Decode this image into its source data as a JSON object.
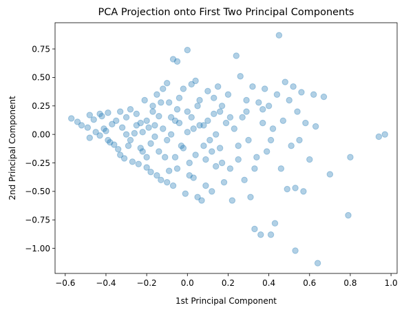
{
  "chart_data": {
    "type": "scatter",
    "title": "PCA Projection onto First Two Principal Components",
    "xlabel": "1st Principal Component",
    "ylabel": "2nd Principal Component",
    "xlim": [
      -0.65,
      1.03
    ],
    "ylim": [
      -1.22,
      0.98
    ],
    "xticks": [
      -0.6,
      -0.4,
      -0.2,
      0.0,
      0.2,
      0.4,
      0.6,
      0.8,
      1.0
    ],
    "xtick_labels": [
      "−0.6",
      "−0.4",
      "−0.2",
      "0.0",
      "0.2",
      "0.4",
      "0.6",
      "0.8",
      "1.0"
    ],
    "yticks": [
      0.75,
      0.5,
      0.25,
      0.0,
      -0.25,
      -0.5,
      -0.75,
      -1.0
    ],
    "ytick_labels": [
      "0.75",
      "0.50",
      "0.25",
      "0.00",
      "−0.25",
      "−0.50",
      "−0.75",
      "−1.00"
    ],
    "grid": false,
    "legend": null,
    "marker_color": "#1f77b4",
    "marker_alpha": 0.35,
    "series": [
      {
        "points": [
          [
            -0.57,
            0.14
          ],
          [
            -0.54,
            0.11
          ],
          [
            -0.52,
            0.08
          ],
          [
            -0.49,
            0.06
          ],
          [
            -0.48,
            0.17
          ],
          [
            -0.48,
            -0.03
          ],
          [
            -0.46,
            0.13
          ],
          [
            -0.45,
            0.02
          ],
          [
            -0.43,
            0.18
          ],
          [
            -0.43,
            -0.01
          ],
          [
            -0.42,
            0.16
          ],
          [
            -0.41,
            0.05
          ],
          [
            -0.4,
            0.03
          ],
          [
            -0.39,
            -0.05
          ],
          [
            -0.39,
            0.19
          ],
          [
            -0.38,
            -0.07
          ],
          [
            -0.37,
            0.09
          ],
          [
            -0.36,
            -0.09
          ],
          [
            -0.35,
            0.12
          ],
          [
            -0.34,
            -0.13
          ],
          [
            -0.33,
            0.2
          ],
          [
            -0.33,
            -0.18
          ],
          [
            -0.32,
            0.06
          ],
          [
            -0.31,
            -0.21
          ],
          [
            -0.3,
            0.15
          ],
          [
            -0.29,
            -0.1
          ],
          [
            -0.28,
            0.22
          ],
          [
            -0.27,
            -0.24
          ],
          [
            -0.26,
            0.01
          ],
          [
            -0.25,
            0.18
          ],
          [
            -0.24,
            -0.26
          ],
          [
            -0.23,
            0.1
          ],
          [
            -0.22,
            -0.15
          ],
          [
            -0.21,
            0.3
          ],
          [
            -0.2,
            -0.29
          ],
          [
            -0.19,
            0.06
          ],
          [
            -0.18,
            -0.33
          ],
          [
            -0.17,
            0.25
          ],
          [
            -0.16,
            -0.02
          ],
          [
            -0.15,
            0.35
          ],
          [
            -0.15,
            -0.36
          ],
          [
            -0.14,
            0.16
          ],
          [
            -0.13,
            -0.4
          ],
          [
            -0.12,
            0.4
          ],
          [
            -0.11,
            -0.2
          ],
          [
            -0.1,
            0.45
          ],
          [
            -0.1,
            -0.42
          ],
          [
            -0.09,
            0.28
          ],
          [
            -0.08,
            0.0
          ],
          [
            -0.07,
            -0.45
          ],
          [
            -0.07,
            0.66
          ],
          [
            -0.06,
            0.12
          ],
          [
            -0.05,
            -0.3
          ],
          [
            -0.05,
            0.64
          ],
          [
            -0.04,
            0.32
          ],
          [
            -0.03,
            -0.1
          ],
          [
            -0.02,
            0.4
          ],
          [
            -0.01,
            -0.52
          ],
          [
            0.0,
            0.74
          ],
          [
            0.0,
            0.2
          ],
          [
            0.01,
            -0.25
          ],
          [
            0.02,
            0.44
          ],
          [
            0.03,
            0.05
          ],
          [
            0.03,
            -0.38
          ],
          [
            0.04,
            0.47
          ],
          [
            0.05,
            -0.55
          ],
          [
            0.06,
            0.3
          ],
          [
            0.07,
            -0.58
          ],
          [
            0.08,
            0.08
          ],
          [
            0.09,
            -0.45
          ],
          [
            0.1,
            0.38
          ],
          [
            0.11,
            -0.05
          ],
          [
            0.12,
            -0.5
          ],
          [
            0.13,
            0.18
          ],
          [
            0.14,
            -0.28
          ],
          [
            0.15,
            0.42
          ],
          [
            0.16,
            -0.12
          ],
          [
            0.17,
            0.25
          ],
          [
            0.18,
            -0.42
          ],
          [
            0.19,
            0.1
          ],
          [
            0.2,
            0.35
          ],
          [
            0.21,
            -0.3
          ],
          [
            0.22,
            -0.58
          ],
          [
            0.23,
            0.05
          ],
          [
            0.24,
            0.69
          ],
          [
            0.25,
            -0.22
          ],
          [
            0.26,
            0.51
          ],
          [
            0.27,
            0.15
          ],
          [
            0.28,
            -0.4
          ],
          [
            0.29,
            0.3
          ],
          [
            0.3,
            -0.05
          ],
          [
            0.31,
            -0.55
          ],
          [
            0.32,
            0.42
          ],
          [
            0.33,
            -0.83
          ],
          [
            0.34,
            -0.2
          ],
          [
            0.35,
            0.28
          ],
          [
            0.36,
            -0.88
          ],
          [
            0.37,
            0.1
          ],
          [
            0.38,
            0.4
          ],
          [
            0.39,
            -0.15
          ],
          [
            0.4,
            0.25
          ],
          [
            0.41,
            -0.88
          ],
          [
            0.42,
            0.05
          ],
          [
            0.43,
            -0.78
          ],
          [
            0.44,
            0.35
          ],
          [
            0.45,
            0.87
          ],
          [
            0.46,
            -0.3
          ],
          [
            0.47,
            0.12
          ],
          [
            0.48,
            0.46
          ],
          [
            0.49,
            -0.48
          ],
          [
            0.5,
            0.3
          ],
          [
            0.51,
            -0.1
          ],
          [
            0.52,
            0.42
          ],
          [
            0.53,
            -0.47
          ],
          [
            0.53,
            -1.02
          ],
          [
            0.54,
            0.2
          ],
          [
            0.55,
            -0.05
          ],
          [
            0.56,
            0.37
          ],
          [
            0.57,
            -0.5
          ],
          [
            0.58,
            0.1
          ],
          [
            0.6,
            -0.22
          ],
          [
            0.62,
            0.35
          ],
          [
            0.63,
            0.07
          ],
          [
            0.64,
            -1.13
          ],
          [
            0.67,
            0.33
          ],
          [
            0.7,
            -0.35
          ],
          [
            0.79,
            -0.71
          ],
          [
            0.8,
            -0.2
          ],
          [
            0.94,
            -0.02
          ],
          [
            0.97,
            0.0
          ],
          [
            -0.22,
            0.02
          ],
          [
            -0.2,
            0.12
          ],
          [
            -0.18,
            -0.08
          ],
          [
            -0.16,
            0.08
          ],
          [
            -0.14,
            -0.15
          ],
          [
            -0.12,
            0.05
          ],
          [
            -0.1,
            -0.05
          ],
          [
            -0.08,
            0.15
          ],
          [
            -0.06,
            -0.2
          ],
          [
            -0.04,
            0.1
          ],
          [
            -0.02,
            -0.12
          ],
          [
            0.0,
            0.02
          ],
          [
            0.02,
            0.15
          ],
          [
            0.04,
            -0.18
          ],
          [
            0.06,
            0.08
          ],
          [
            0.08,
            -0.1
          ],
          [
            0.1,
            0.12
          ],
          [
            0.12,
            -0.15
          ],
          [
            0.14,
            0.0
          ],
          [
            0.16,
            0.2
          ],
          [
            -0.3,
            0.0
          ],
          [
            -0.28,
            -0.05
          ],
          [
            -0.25,
            0.08
          ],
          [
            -0.23,
            -0.12
          ],
          [
            -0.2,
            -0.2
          ],
          [
            -0.17,
            0.2
          ],
          [
            -0.13,
            0.28
          ],
          [
            -0.09,
            -0.32
          ],
          [
            -0.05,
            0.22
          ],
          [
            0.01,
            -0.36
          ],
          [
            0.05,
            0.25
          ],
          [
            0.09,
            -0.22
          ],
          [
            0.13,
            0.32
          ],
          [
            0.17,
            -0.25
          ],
          [
            0.21,
            0.15
          ],
          [
            0.25,
            -0.1
          ],
          [
            0.29,
            0.2
          ],
          [
            0.33,
            -0.3
          ],
          [
            0.37,
            0.22
          ],
          [
            0.41,
            -0.05
          ]
        ]
      }
    ]
  }
}
